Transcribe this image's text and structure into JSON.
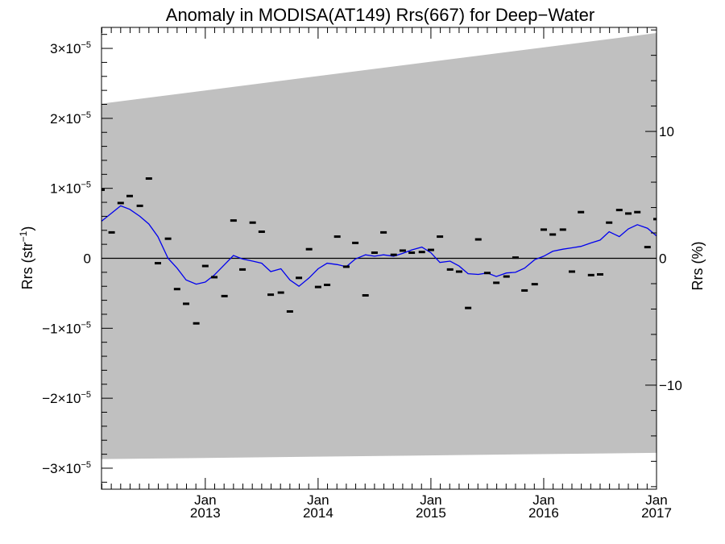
{
  "chart_data": {
    "type": "scatter",
    "title": "Anomaly in MODISA(AT149) Rrs(667) for Deep−Water",
    "ylabel_left": {
      "base": "Rrs (str",
      "sup": "−1",
      "close": ")"
    },
    "ylabel_right": "Rrs (%)",
    "xlim": [
      2012.08,
      2017.0
    ],
    "ylim": [
      -3.3e-05,
      3.3e-05
    ],
    "y2lim": [
      -18.2,
      18.2
    ],
    "grid": false,
    "colors": {
      "band": "#c0c0c0",
      "line": "#0000ee",
      "points": "#000000",
      "zero": "#000000"
    },
    "x_ticks": [
      {
        "x": 2013.0,
        "top": "Jan",
        "bottom": "2013"
      },
      {
        "x": 2014.0,
        "top": "Jan",
        "bottom": "2014"
      },
      {
        "x": 2015.0,
        "top": "Jan",
        "bottom": "2015"
      },
      {
        "x": 2016.0,
        "top": "Jan",
        "bottom": "2016"
      },
      {
        "x": 2017.0,
        "top": "Jan",
        "bottom": "2017"
      }
    ],
    "y_ticks": [
      {
        "y": 3e-05,
        "mant": "3×10",
        "exp": "−5"
      },
      {
        "y": 2e-05,
        "mant": "2×10",
        "exp": "−5"
      },
      {
        "y": 1e-05,
        "mant": "1×10",
        "exp": "−5"
      },
      {
        "y": 0,
        "mant": "0",
        "exp": ""
      },
      {
        "y": -1e-05,
        "mant": "−1×10",
        "exp": "−5"
      },
      {
        "y": -2e-05,
        "mant": "−2×10",
        "exp": "−5"
      },
      {
        "y": -3e-05,
        "mant": "−3×10",
        "exp": "−5"
      }
    ],
    "y2_ticks": [
      {
        "y": 10,
        "label": "10"
      },
      {
        "y": 0,
        "label": "0"
      },
      {
        "y": -10,
        "label": "−10"
      }
    ],
    "band": {
      "x": [
        2012.08,
        2017.0
      ],
      "upper": [
        2.21e-05,
        3.22e-05
      ],
      "lower": [
        -2.87e-05,
        -2.78e-05
      ]
    },
    "series": [
      {
        "kind": "line",
        "x": [
          2012.08,
          2012.25,
          2012.33,
          2012.42,
          2012.5,
          2012.58,
          2012.67,
          2012.75,
          2012.83,
          2012.92,
          2013.0,
          2013.08,
          2013.25,
          2013.33,
          2013.42,
          2013.5,
          2013.58,
          2013.67,
          2013.75,
          2013.83,
          2013.92,
          2014.0,
          2014.08,
          2014.17,
          2014.25,
          2014.33,
          2014.42,
          2014.5,
          2014.58,
          2014.67,
          2014.75,
          2014.83,
          2014.92,
          2015.0,
          2015.08,
          2015.17,
          2015.25,
          2015.33,
          2015.42,
          2015.5,
          2015.58,
          2015.67,
          2015.75,
          2015.83,
          2015.92,
          2016.0,
          2016.08,
          2016.17,
          2016.25,
          2016.33,
          2016.42,
          2016.5,
          2016.58,
          2016.67,
          2016.75,
          2016.83,
          2016.92,
          2017.0
        ],
        "y": [
          5.3e-06,
          7.5e-06,
          7e-06,
          6e-06,
          4.9e-06,
          3.1e-06,
          0.0,
          -1.4e-06,
          -3.1e-06,
          -3.7e-06,
          -3.4e-06,
          -2.4e-06,
          4e-07,
          -1e-07,
          -4e-07,
          -7e-07,
          -1.9e-06,
          -1.5e-06,
          -3.1e-06,
          -4e-06,
          -2.8e-06,
          -1.5e-06,
          -7e-07,
          -9e-07,
          -1.2e-06,
          -1e-07,
          5e-07,
          3e-07,
          5e-07,
          3e-07,
          7e-07,
          1.2e-06,
          1.6e-06,
          8e-07,
          -6e-07,
          -4e-07,
          -1.1e-06,
          -2.2e-06,
          -2.3e-06,
          -2.1e-06,
          -2.6e-06,
          -2.1e-06,
          -2e-06,
          -1.4e-06,
          -2e-07,
          3e-07,
          1e-06,
          1.3e-06,
          1.5e-06,
          1.7e-06,
          2.2e-06,
          2.6e-06,
          3.8e-06,
          3.1e-06,
          4.2e-06,
          4.8e-06,
          4.3e-06,
          3.2e-06
        ]
      },
      {
        "kind": "points",
        "x": [
          2012.08,
          2012.17,
          2012.25,
          2012.33,
          2012.42,
          2012.5,
          2012.58,
          2012.67,
          2012.75,
          2012.83,
          2012.92,
          2013.0,
          2013.08,
          2013.17,
          2013.25,
          2013.33,
          2013.42,
          2013.5,
          2013.58,
          2013.67,
          2013.75,
          2013.83,
          2013.92,
          2014.0,
          2014.08,
          2014.17,
          2014.25,
          2014.33,
          2014.42,
          2014.5,
          2014.58,
          2014.67,
          2014.75,
          2014.83,
          2014.92,
          2015.0,
          2015.08,
          2015.17,
          2015.25,
          2015.33,
          2015.42,
          2015.5,
          2015.58,
          2015.67,
          2015.75,
          2015.83,
          2015.92,
          2016.0,
          2016.08,
          2016.17,
          2016.25,
          2016.33,
          2016.42,
          2016.5,
          2016.58,
          2016.67,
          2016.75,
          2016.83,
          2016.92,
          2017.0
        ],
        "y": [
          9.8e-06,
          3.7e-06,
          7.9e-06,
          8.9e-06,
          7.5e-06,
          1.14e-05,
          -7e-07,
          2.8e-06,
          -4.4e-06,
          -6.5e-06,
          -9.3e-06,
          -1.1e-06,
          -2.7e-06,
          -5.4e-06,
          5.4e-06,
          -1.6e-06,
          5.1e-06,
          3.8e-06,
          -5.2e-06,
          -4.9e-06,
          -7.6e-06,
          -2.8e-06,
          1.3e-06,
          -4.1e-06,
          -3.8e-06,
          3.1e-06,
          -1.2e-06,
          2.2e-06,
          -5.3e-06,
          8e-07,
          3.7e-06,
          5e-07,
          1.1e-06,
          8e-07,
          9e-07,
          1.2e-06,
          3.1e-06,
          -1.6e-06,
          -1.9e-06,
          -7.1e-06,
          2.7e-06,
          -2.1e-06,
          -3.5e-06,
          -2.6e-06,
          1e-07,
          -4.6e-06,
          -3.7e-06,
          4.1e-06,
          3.4e-06,
          4.1e-06,
          -1.9e-06,
          6.6e-06,
          -2.4e-06,
          -2.3e-06,
          5.1e-06,
          6.9e-06,
          6.4e-06,
          6.6e-06,
          1.6e-06,
          5.6e-06
        ]
      }
    ]
  }
}
